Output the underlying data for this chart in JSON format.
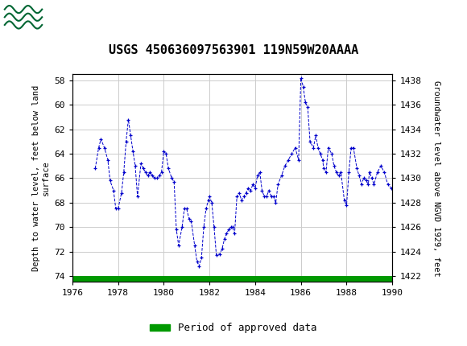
{
  "title": "USGS 450636097563901 119N59W20AAAA",
  "ylabel_left": "Depth to water level, feet below land\nsurface",
  "ylabel_right": "Groundwater level above NGVD 1929, feet",
  "xlim": [
    1976,
    1990
  ],
  "ylim_left": [
    57.5,
    74.5
  ],
  "ylim_right_top": 1438,
  "ylim_right_bottom": 1422,
  "xticks": [
    1976,
    1978,
    1980,
    1982,
    1984,
    1986,
    1988,
    1990
  ],
  "yticks_left": [
    58,
    60,
    62,
    64,
    66,
    68,
    70,
    72,
    74
  ],
  "yticks_right": [
    1422,
    1424,
    1426,
    1428,
    1430,
    1432,
    1434,
    1436,
    1438
  ],
  "line_color": "#0000CC",
  "marker": "+",
  "linestyle": "--",
  "header_color": "#006633",
  "legend_label": "Period of approved data",
  "legend_color": "#009900",
  "bg_color": "#ffffff",
  "grid_color": "#cccccc",
  "data_x": [
    1977.0,
    1977.15,
    1977.25,
    1977.4,
    1977.55,
    1977.65,
    1977.8,
    1977.9,
    1978.0,
    1978.15,
    1978.25,
    1978.35,
    1978.45,
    1978.55,
    1978.65,
    1978.75,
    1978.85,
    1979.0,
    1979.1,
    1979.2,
    1979.3,
    1979.4,
    1979.5,
    1979.6,
    1979.7,
    1979.8,
    1979.9,
    1980.0,
    1980.1,
    1980.2,
    1980.35,
    1980.45,
    1980.55,
    1980.65,
    1980.8,
    1980.9,
    1981.0,
    1981.1,
    1981.2,
    1981.35,
    1981.45,
    1981.55,
    1981.65,
    1981.75,
    1981.85,
    1981.95,
    1982.0,
    1982.1,
    1982.2,
    1982.3,
    1982.45,
    1982.55,
    1982.65,
    1982.75,
    1982.85,
    1982.95,
    1983.0,
    1983.1,
    1983.2,
    1983.3,
    1983.4,
    1983.5,
    1983.6,
    1983.7,
    1983.8,
    1983.9,
    1984.0,
    1984.1,
    1984.2,
    1984.3,
    1984.4,
    1984.5,
    1984.6,
    1984.7,
    1984.8,
    1984.9,
    1985.0,
    1985.15,
    1985.3,
    1985.45,
    1985.6,
    1985.75,
    1985.9,
    1986.0,
    1986.1,
    1986.2,
    1986.3,
    1986.4,
    1986.55,
    1986.65,
    1986.75,
    1986.85,
    1986.95,
    1987.0,
    1987.1,
    1987.2,
    1987.35,
    1987.45,
    1987.55,
    1987.65,
    1987.75,
    1987.9,
    1988.0,
    1988.1,
    1988.2,
    1988.3,
    1988.45,
    1988.55,
    1988.65,
    1988.75,
    1988.85,
    1988.95,
    1989.0,
    1989.1,
    1989.2,
    1989.35,
    1989.5,
    1989.65,
    1989.8,
    1989.95
  ],
  "data_y": [
    65.2,
    63.5,
    62.8,
    63.5,
    64.5,
    66.2,
    67.0,
    68.5,
    68.5,
    67.2,
    65.5,
    63.0,
    61.2,
    62.5,
    63.8,
    65.0,
    67.5,
    64.8,
    65.2,
    65.5,
    65.8,
    65.5,
    65.8,
    66.0,
    66.0,
    65.8,
    65.5,
    63.8,
    64.0,
    65.2,
    66.0,
    66.3,
    70.2,
    71.5,
    70.0,
    68.5,
    68.5,
    69.3,
    69.5,
    71.5,
    72.8,
    73.2,
    72.5,
    70.0,
    68.5,
    67.8,
    67.5,
    68.0,
    70.0,
    72.3,
    72.2,
    71.8,
    71.0,
    70.5,
    70.2,
    70.0,
    70.0,
    70.5,
    67.5,
    67.2,
    67.8,
    67.5,
    67.2,
    66.8,
    67.0,
    66.5,
    66.8,
    65.8,
    65.5,
    67.0,
    67.5,
    67.5,
    67.0,
    67.5,
    67.5,
    68.0,
    66.5,
    65.8,
    65.0,
    64.5,
    64.0,
    63.5,
    64.5,
    57.8,
    58.5,
    59.8,
    60.2,
    63.0,
    63.5,
    62.5,
    63.5,
    64.0,
    64.5,
    65.2,
    65.5,
    63.5,
    64.0,
    65.0,
    65.5,
    65.8,
    65.5,
    67.8,
    68.2,
    65.5,
    63.5,
    63.5,
    65.2,
    65.8,
    66.5,
    66.0,
    66.2,
    66.5,
    65.5,
    66.0,
    66.5,
    65.5,
    65.0,
    65.5,
    66.5,
    66.8
  ]
}
